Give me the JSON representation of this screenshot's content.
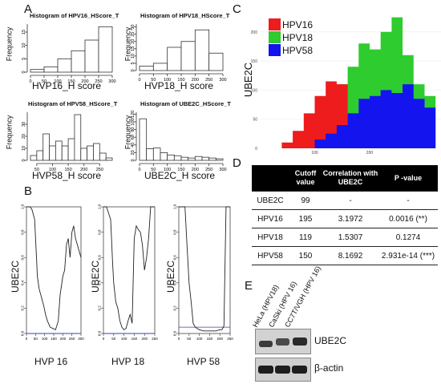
{
  "panels": {
    "a": "A",
    "b": "B",
    "c": "C",
    "d": "D",
    "e": "E"
  },
  "histograms": [
    {
      "title": "Histogram of HPV16_HScore_T",
      "ylabel": "Frequency",
      "xlabel": "HVP16_H score",
      "xticks": [
        "0",
        "50",
        "100",
        "150",
        "200",
        "250",
        "300"
      ],
      "yticks": [
        "0",
        "5",
        "10",
        "15"
      ],
      "bins_edges": [
        0,
        50,
        100,
        150,
        200,
        250,
        300
      ],
      "counts": [
        1,
        2,
        5,
        8,
        12,
        17
      ],
      "ymax": 18
    },
    {
      "title": "Histogram of HPV18_HScore_T",
      "ylabel": "Frequency",
      "xlabel": "HVP18_H score",
      "xticks": [
        "0",
        "50",
        "100",
        "150",
        "200",
        "250",
        "300"
      ],
      "yticks": [
        "0",
        "5",
        "10",
        "15",
        "20",
        "25",
        "30"
      ],
      "bins_edges": [
        0,
        50,
        100,
        150,
        200,
        250,
        300
      ],
      "counts": [
        3,
        5,
        16,
        20,
        28,
        12
      ],
      "ymax": 32
    },
    {
      "title": "Histogram of HPV58_HScore_T",
      "ylabel": "Frequency",
      "xlabel": "HVP58_H score",
      "xticks": [
        "50",
        "100",
        "150",
        "200",
        "250"
      ],
      "yticks": [
        "0",
        "10",
        "20",
        "30"
      ],
      "bins_edges": [
        30,
        50,
        70,
        90,
        110,
        130,
        150,
        170,
        190,
        210,
        230,
        250,
        270,
        290
      ],
      "counts": [
        4,
        8,
        22,
        12,
        16,
        12,
        18,
        38,
        10,
        12,
        14,
        6,
        2
      ],
      "ymax": 40
    },
    {
      "title": "Histogram of UBE2C_HScore_T",
      "ylabel": "Frequency",
      "xlabel": "UBE2C_H score",
      "xticks": [
        "0",
        "50",
        "100",
        "150",
        "200",
        "250",
        "300"
      ],
      "yticks": [
        "0",
        "20",
        "40",
        "60",
        "80",
        "100",
        "120"
      ],
      "bins_edges": [
        0,
        25,
        50,
        75,
        100,
        125,
        150,
        175,
        200,
        225,
        250,
        275,
        300
      ],
      "counts": [
        108,
        30,
        32,
        20,
        14,
        12,
        8,
        6,
        10,
        8,
        6,
        4
      ],
      "ymax": 125
    }
  ],
  "lines": [
    {
      "ylabel": "UBE2C",
      "xlabel": "HVP 16",
      "xticks": [
        "0",
        "50",
        "100",
        "150",
        "200",
        "250",
        "300"
      ],
      "yticks": [
        "0.0",
        "0.2",
        "0.4",
        "0.6",
        "0.8",
        "1.0"
      ]
    },
    {
      "ylabel": "UBE2C",
      "xlabel": "HVP 18",
      "xticks": [
        "0",
        "50",
        "100",
        "150",
        "200",
        "250"
      ],
      "yticks": [
        "0.0",
        "0.2",
        "0.4",
        "0.6",
        "0.8",
        "1.0"
      ]
    },
    {
      "ylabel": "UBE2C",
      "xlabel": "HVP 58",
      "xticks": [
        "0",
        "50",
        "100",
        "150",
        "200",
        "250"
      ],
      "yticks": [
        "0.0",
        "0.2",
        "0.4",
        "0.6",
        "0.8",
        "1.0"
      ]
    }
  ],
  "area_chart": {
    "ylabel": "UBE2C",
    "yticks": [
      "0",
      "50",
      "100",
      "150",
      "200"
    ],
    "xticks": [
      "100",
      "200"
    ],
    "legend": [
      "HPV16",
      "HPV18",
      "HPV58"
    ],
    "colors": {
      "HPV16": "#ee1c1c",
      "HPV18": "#2ecc2e",
      "HPV58": "#1414ee"
    }
  },
  "table": {
    "headers": [
      "",
      "Cutoff value",
      "Correlation with UBE2C",
      "P -value"
    ],
    "rows": [
      [
        "UBE2C",
        "99",
        "-",
        "-"
      ],
      [
        "HPV16",
        "195",
        "3.1972",
        "0.0016 (**)"
      ],
      [
        "HPV18",
        "119",
        "1.5307",
        "0.1274"
      ],
      [
        "HPV58",
        "150",
        "8.1692",
        "2.931e-14 (***)"
      ]
    ]
  },
  "blot": {
    "lanes": [
      "HeLa (HPV18)",
      "CaSki (HPV 16)",
      "CC7T/VGH (HPV 16)"
    ],
    "rows": [
      "UBE2C",
      "β-actin"
    ]
  },
  "chart_data": [
    {
      "type": "bar",
      "title": "Histogram of HPV16_HScore_T",
      "xlabel": "HVP16_H score",
      "ylabel": "Frequency",
      "categories": [
        "0-50",
        "50-100",
        "100-150",
        "150-200",
        "200-250",
        "250-300"
      ],
      "values": [
        1,
        2,
        5,
        8,
        12,
        17
      ],
      "ylim": [
        0,
        18
      ]
    },
    {
      "type": "bar",
      "title": "Histogram of HPV18_HScore_T",
      "xlabel": "HVP18_H score",
      "ylabel": "Frequency",
      "categories": [
        "0-50",
        "50-100",
        "100-150",
        "150-200",
        "200-250",
        "250-300"
      ],
      "values": [
        3,
        5,
        16,
        20,
        28,
        12
      ],
      "ylim": [
        0,
        32
      ]
    },
    {
      "type": "bar",
      "title": "Histogram of HPV58_HScore_T",
      "xlabel": "HVP58_H score",
      "ylabel": "Frequency",
      "categories": [
        "30-50",
        "50-70",
        "70-90",
        "90-110",
        "110-130",
        "130-150",
        "150-170",
        "170-190",
        "190-210",
        "210-230",
        "230-250",
        "250-270",
        "270-290"
      ],
      "values": [
        4,
        8,
        22,
        12,
        16,
        12,
        18,
        38,
        10,
        12,
        14,
        6,
        2
      ],
      "ylim": [
        0,
        40
      ]
    },
    {
      "type": "bar",
      "title": "Histogram of UBE2C_HScore_T",
      "xlabel": "UBE2C_H score",
      "ylabel": "Frequency",
      "categories": [
        "0-25",
        "25-50",
        "50-75",
        "75-100",
        "100-125",
        "125-150",
        "150-175",
        "175-200",
        "200-225",
        "225-250",
        "250-275",
        "275-300"
      ],
      "values": [
        108,
        30,
        32,
        20,
        14,
        12,
        8,
        6,
        10,
        8,
        6,
        4
      ],
      "ylim": [
        0,
        125
      ]
    },
    {
      "type": "line",
      "xlabel": "HVP 16",
      "ylabel": "UBE2C",
      "ylim": [
        0,
        1
      ],
      "x": [
        0,
        20,
        30,
        45,
        55,
        60,
        70,
        80,
        95,
        105,
        115,
        130,
        145,
        160,
        175,
        185,
        200,
        210,
        220,
        230,
        240,
        250,
        260,
        270,
        280,
        290,
        300
      ],
      "y": [
        1.0,
        1.0,
        0.98,
        0.9,
        0.6,
        0.45,
        0.35,
        0.3,
        0.22,
        0.15,
        0.1,
        0.05,
        0.04,
        0.03,
        0.1,
        0.3,
        0.45,
        0.5,
        0.7,
        0.75,
        0.6,
        0.8,
        0.85,
        0.75,
        0.7,
        0.65,
        0.6
      ]
    },
    {
      "type": "line",
      "xlabel": "HVP 18",
      "ylabel": "UBE2C",
      "ylim": [
        0,
        1
      ],
      "x": [
        0,
        15,
        25,
        35,
        45,
        50,
        60,
        70,
        80,
        90,
        100,
        110,
        120,
        130,
        140,
        150,
        160,
        170,
        180,
        190,
        200,
        210,
        220,
        230,
        240,
        250
      ],
      "y": [
        1.0,
        1.0,
        0.95,
        0.9,
        0.55,
        0.4,
        0.25,
        0.2,
        0.1,
        0.05,
        0.03,
        0.04,
        0.1,
        0.15,
        0.08,
        0.75,
        0.85,
        0.82,
        0.8,
        0.7,
        0.5,
        0.6,
        0.75,
        1.0,
        1.0,
        1.0
      ]
    },
    {
      "type": "line",
      "xlabel": "HVP 58",
      "ylabel": "UBE2C",
      "ylim": [
        0,
        1
      ],
      "x": [
        0,
        20,
        30,
        40,
        50,
        60,
        70,
        80,
        90,
        100,
        120,
        150,
        180,
        200,
        210,
        220,
        230,
        240,
        250
      ],
      "y": [
        1.0,
        1.0,
        1.0,
        0.7,
        0.4,
        0.25,
        0.08,
        0.05,
        0.04,
        0.03,
        0.02,
        0.02,
        0.02,
        0.03,
        0.03,
        0.06,
        1.0,
        1.0,
        1.0
      ]
    },
    {
      "type": "area",
      "ylabel": "UBE2C",
      "ylim": [
        0,
        230
      ],
      "series": [
        {
          "name": "HPV16",
          "x": [
            40,
            60,
            80,
            100,
            120,
            140,
            160
          ],
          "y": [
            10,
            30,
            60,
            90,
            115,
            110,
            40
          ]
        },
        {
          "name": "HPV18",
          "x": [
            80,
            100,
            120,
            140,
            160,
            180,
            200,
            220,
            240,
            260,
            280,
            300
          ],
          "y": [
            20,
            40,
            70,
            110,
            140,
            180,
            170,
            200,
            225,
            160,
            110,
            90
          ]
        },
        {
          "name": "HPV58",
          "x": [
            100,
            120,
            140,
            160,
            180,
            200,
            220,
            240,
            260,
            280,
            300
          ],
          "y": [
            15,
            25,
            40,
            60,
            85,
            90,
            100,
            95,
            110,
            85,
            70
          ]
        }
      ]
    },
    {
      "type": "table",
      "columns": [
        "",
        "Cutoff value",
        "Correlation with UBE2C",
        "P -value"
      ],
      "rows": [
        [
          "UBE2C",
          "99",
          "-",
          "-"
        ],
        [
          "HPV16",
          "195",
          "3.1972",
          "0.0016 (**)"
        ],
        [
          "HPV18",
          "119",
          "1.5307",
          "0.1274"
        ],
        [
          "HPV58",
          "150",
          "8.1692",
          "2.931e-14 (***)"
        ]
      ]
    }
  ]
}
